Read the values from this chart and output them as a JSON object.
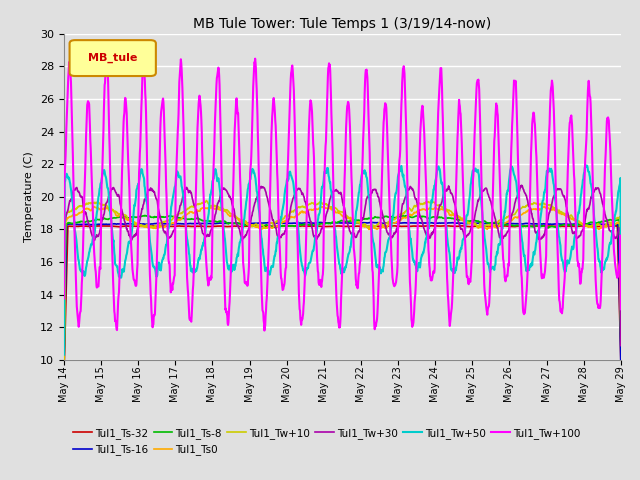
{
  "title": "MB Tule Tower: Tule Temps 1 (3/19/14-now)",
  "ylabel": "Temperature (C)",
  "ylim": [
    10,
    30
  ],
  "yticks": [
    10,
    12,
    14,
    16,
    18,
    20,
    22,
    24,
    26,
    28,
    30
  ],
  "days": 15,
  "day_start": 14,
  "legend_label": "MB_tule",
  "series": {
    "Tul1_Ts-32": {
      "color": "#cc0000",
      "lw": 1.2,
      "zorder": 3
    },
    "Tul1_Ts-16": {
      "color": "#0000cc",
      "lw": 1.2,
      "zorder": 3
    },
    "Tul1_Ts-8": {
      "color": "#00bb00",
      "lw": 1.2,
      "zorder": 3
    },
    "Tul1_Ts0": {
      "color": "#ffaa00",
      "lw": 1.2,
      "zorder": 3
    },
    "Tul1_Tw+10": {
      "color": "#cccc00",
      "lw": 1.2,
      "zorder": 3
    },
    "Tul1_Tw+30": {
      "color": "#aa00aa",
      "lw": 1.2,
      "zorder": 3
    },
    "Tul1_Tw+50": {
      "color": "#00cccc",
      "lw": 1.5,
      "zorder": 4
    },
    "Tul1_Tw+100": {
      "color": "#ff00ff",
      "lw": 1.5,
      "zorder": 5
    }
  },
  "bg_color": "#e0e0e0",
  "grid_color": "#ffffff",
  "box_color": "#ffff99",
  "box_edge": "#cc8800",
  "legend_order": [
    "Tul1_Ts-32",
    "Tul1_Ts-16",
    "Tul1_Ts-8",
    "Tul1_Ts0",
    "Tul1_Tw+10",
    "Tul1_Tw+30",
    "Tul1_Tw+50",
    "Tul1_Tw+100"
  ]
}
